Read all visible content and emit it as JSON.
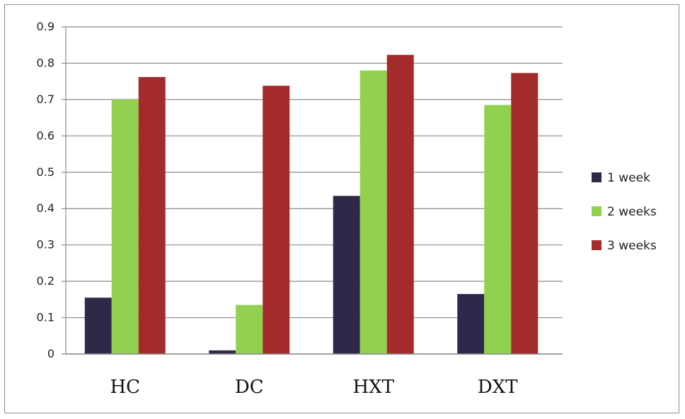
{
  "chart_data": {
    "type": "bar",
    "title": "",
    "xlabel": "",
    "ylabel": "",
    "categories": [
      "HC",
      "DC",
      "HXT",
      "DXT"
    ],
    "series": [
      {
        "name": "1 week",
        "color": "#2e2948",
        "values": [
          0.155,
          0.01,
          0.435,
          0.165
        ]
      },
      {
        "name": "2 weeks",
        "color": "#92d050",
        "values": [
          0.7,
          0.135,
          0.78,
          0.685
        ]
      },
      {
        "name": "3 weeks",
        "color": "#a32b2b",
        "values": [
          0.762,
          0.738,
          0.823,
          0.773
        ]
      }
    ],
    "ylim": [
      0,
      0.9
    ],
    "yticks": [
      "0",
      "0.1",
      "0.2",
      "0.3",
      "0.4",
      "0.5",
      "0.6",
      "0.7",
      "0.8",
      "0.9"
    ],
    "grid": true,
    "legend_position": "right"
  }
}
